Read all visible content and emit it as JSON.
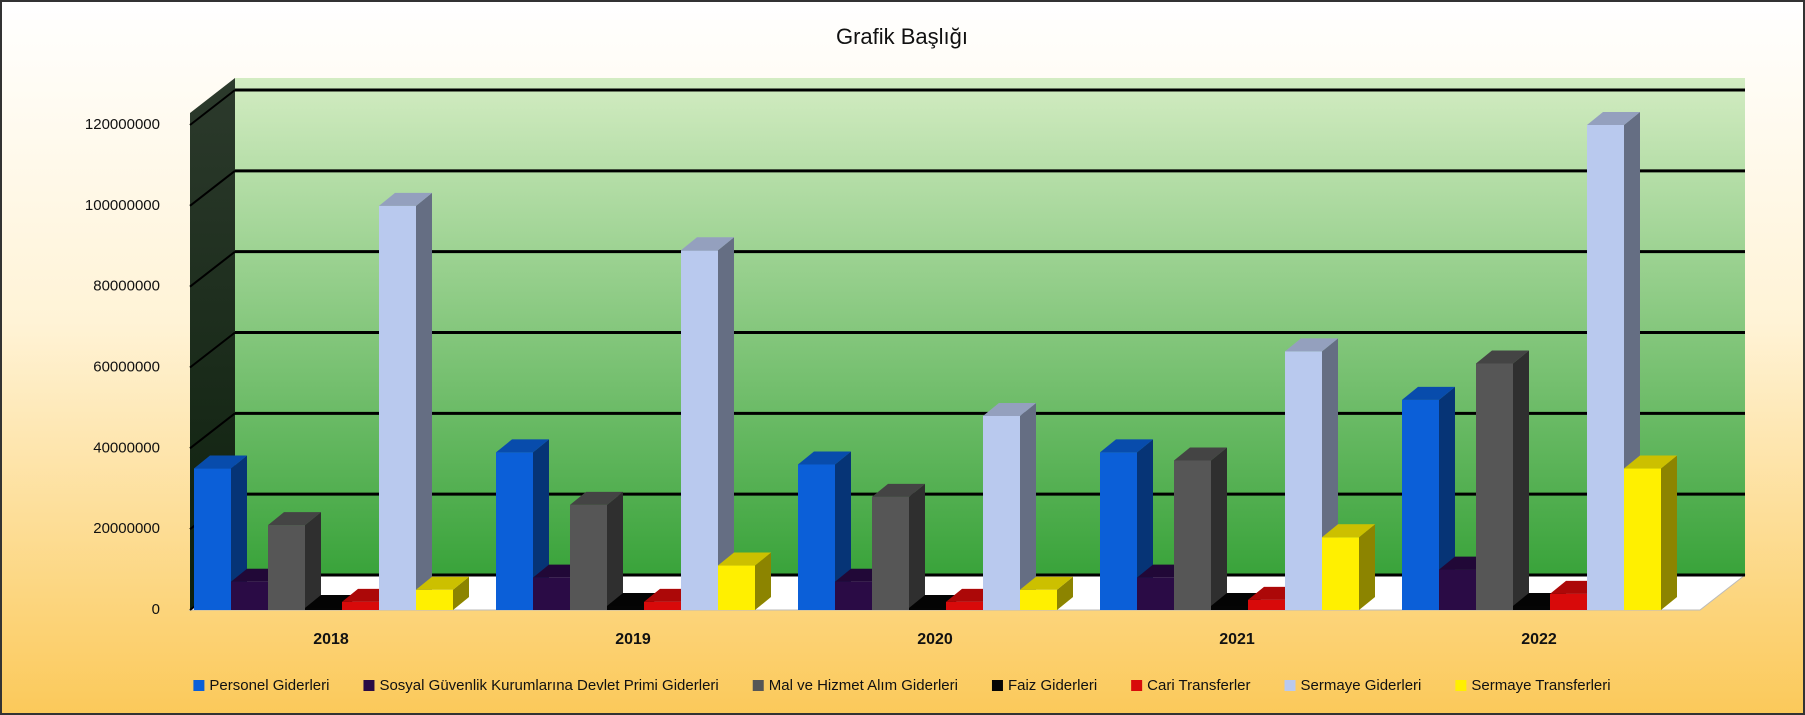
{
  "chart_data": {
    "type": "bar3d",
    "title": "Grafik Başlığı",
    "categories": [
      "2018",
      "2019",
      "2020",
      "2021",
      "2022"
    ],
    "series": [
      {
        "name": "Personel Giderleri",
        "color": "#0b5fd8",
        "values": [
          35000000,
          39000000,
          36000000,
          39000000,
          52000000
        ]
      },
      {
        "name": "Sosyal Güvenlik Kurumlarına Devlet Primi Giderleri",
        "color": "#2a0b45",
        "values": [
          7000000,
          8000000,
          7000000,
          8000000,
          10000000
        ]
      },
      {
        "name": "Mal ve Hizmet Alım Giderleri",
        "color": "#565656",
        "values": [
          21000000,
          26000000,
          28000000,
          37000000,
          61000000
        ]
      },
      {
        "name": "Faiz Giderleri",
        "color": "#050505",
        "values": [
          500000,
          1000000,
          500000,
          1000000,
          1000000
        ]
      },
      {
        "name": "Cari Transferler",
        "color": "#d80a0a",
        "values": [
          2000000,
          2000000,
          2000000,
          2500000,
          4000000
        ]
      },
      {
        "name": "Sermaye Giderleri",
        "color": "#b9c9ee",
        "values": [
          100000000,
          89000000,
          48000000,
          64000000,
          120000000
        ]
      },
      {
        "name": "Sermaye Transferleri",
        "color": "#fff000",
        "values": [
          5000000,
          11000000,
          5000000,
          18000000,
          35000000
        ]
      }
    ],
    "ylim": [
      0,
      120000000
    ],
    "yticks": [
      0,
      20000000,
      40000000,
      60000000,
      80000000,
      100000000,
      120000000
    ],
    "grid": true,
    "legend": "bottom"
  }
}
